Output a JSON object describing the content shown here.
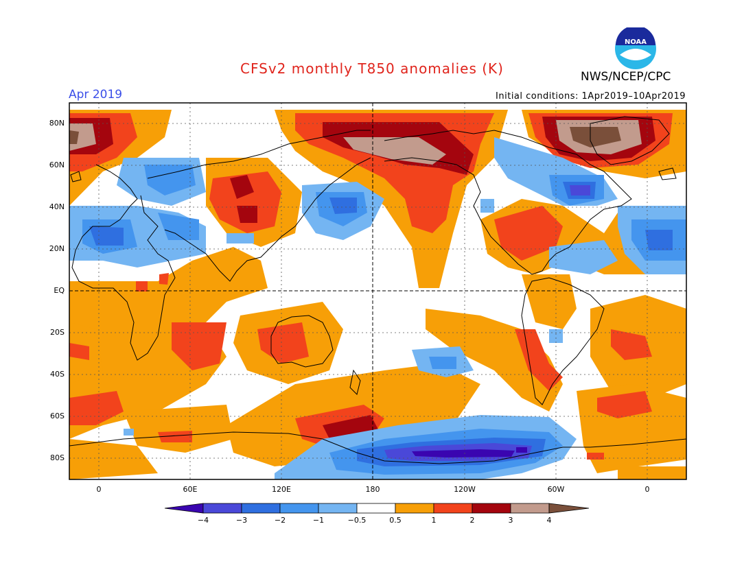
{
  "header": {
    "title": "CFSv2 monthly T850 anomalies (K)",
    "agency": "NWS/NCEP/CPC",
    "month": "Apr 2019",
    "initial_conditions": "Initial conditions: 1Apr2019–10Apr2019"
  },
  "logo": {
    "text": "NOAA",
    "icon": "noaa-logo-icon"
  },
  "axes": {
    "lat_labels": [
      "80N",
      "60N",
      "40N",
      "20N",
      "EQ",
      "20S",
      "40S",
      "60S",
      "80S"
    ],
    "lon_labels": [
      "0",
      "60E",
      "120E",
      "180",
      "120W",
      "60W",
      "0"
    ]
  },
  "colorbar": {
    "labels": [
      "−4",
      "−3",
      "−2",
      "−1",
      "−0.5",
      "0.5",
      "1",
      "2",
      "3",
      "4"
    ],
    "colors": [
      "#3a05b0",
      "#4a48d8",
      "#2f6fe0",
      "#4495ee",
      "#74b5f2",
      "#ffffff",
      "#f79f07",
      "#f2431c",
      "#a4050e",
      "#c29b8d",
      "#7a4f3a"
    ]
  },
  "palette": {
    "title": "#e0241c",
    "month": "#3a4ee8",
    "orange": "#f79f07",
    "red": "#f2431c",
    "darkred": "#a4050e",
    "tan": "#c29b8d",
    "brown": "#7a4f3a",
    "lblue": "#74b5f2",
    "blue": "#4495ee",
    "mblue": "#2f6fe0",
    "dblue": "#4a48d8",
    "purple": "#3a05b0"
  }
}
